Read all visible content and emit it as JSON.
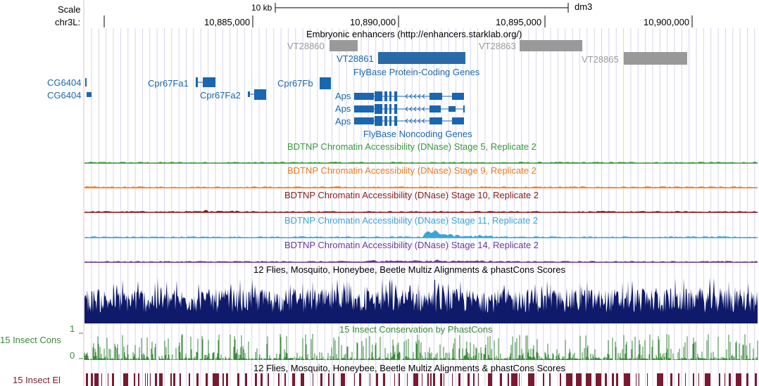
{
  "ruler": {
    "scale_label": "Scale",
    "chrom_label": "chr3L:",
    "scale_bar_label": "10 kb",
    "assembly": "dm3",
    "ticks": [
      "10,885,000",
      "10,890,000",
      "10,895,000",
      "10,900,000"
    ]
  },
  "tracks": {
    "enhancers": {
      "title": "Embryonic enhancers (http://enhancers.starklab.org/)",
      "items": [
        "VT28860",
        "VT28861",
        "VT28863",
        "VT28865"
      ]
    },
    "flybase_coding": {
      "title": "FlyBase Protein-Coding Genes",
      "genes": [
        "CG6404",
        "CG6404",
        "Cpr67Fa1",
        "Cpr67Fa2",
        "Cpr67Fb",
        "Aps",
        "Aps",
        "Aps"
      ]
    },
    "flybase_noncoding": {
      "title": "FlyBase Noncoding Genes"
    },
    "dnase": [
      {
        "title": "BDTNP Chromatin Accessibility (DNase) Stage 5, Replicate 2",
        "color": "#3a9a3a"
      },
      {
        "title": "BDTNP Chromatin Accessibility (DNase) Stage 9, Replicate 2",
        "color": "#f07a20"
      },
      {
        "title": "BDTNP Chromatin Accessibility (DNase) Stage 10, Replicate 2",
        "color": "#8b1a1a"
      },
      {
        "title": "BDTNP Chromatin Accessibility (DNase) Stage 11, Replicate 2",
        "color": "#3aa6d6"
      },
      {
        "title": "BDTNP Chromatin Accessibility (DNase) Stage 14, Replicate 2",
        "color": "#6a3a9a"
      }
    ],
    "multiz": {
      "title": "12 Flies, Mosquito, Honeybee, Beetle Multiz Alignments & phastCons Scores",
      "color": "#0f1a6a"
    },
    "insect_cons": {
      "title": "15 Insect Conservation by PhastCons",
      "side_label": "15 Insect Cons",
      "axis_max": "1",
      "axis_min": "0",
      "color": "#3a8a3a"
    },
    "insect_el": {
      "title": "12 Flies, Mosquito, Honeybee, Beetle Multiz Alignments & phastCons Scores",
      "side_label": "15 Insect El",
      "color": "#7a1a30"
    }
  },
  "colors": {
    "gene": "#1a66b0",
    "enhancer_gray": "#999999",
    "enhancer_blue": "#2a6aa8",
    "grid": "#d6d6f0",
    "left_border": "#f2b8b8"
  }
}
